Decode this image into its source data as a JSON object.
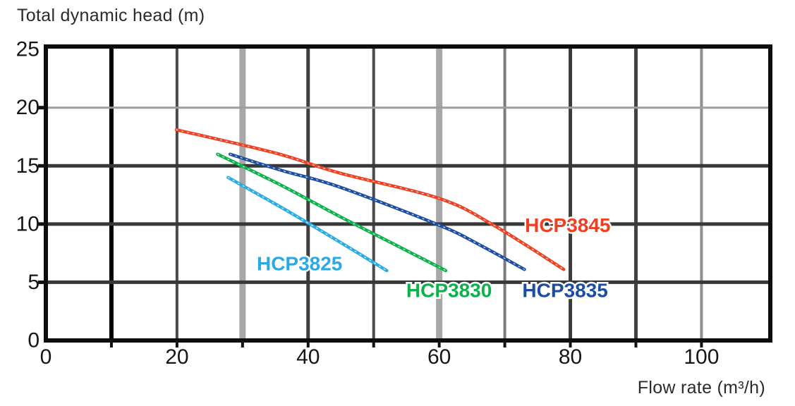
{
  "chart_data": {
    "type": "line",
    "title": "",
    "ylabel": "Total dynamic head (m)",
    "xlabel": "Flow rate (m³/h)",
    "xlim": [
      0,
      110.5
    ],
    "ylim": [
      0,
      25.25
    ],
    "grid": true,
    "x_gridline_step": 10,
    "y_gridline_step": 5,
    "legend_position": "inline-curve-labels",
    "x_ticks": [
      {
        "value": 0,
        "label": "0"
      },
      {
        "value": 20,
        "label": "20"
      },
      {
        "value": 40,
        "label": "40"
      },
      {
        "value": 60,
        "label": "60"
      },
      {
        "value": 80,
        "label": "80"
      },
      {
        "value": 100,
        "label": "100"
      }
    ],
    "y_ticks": [
      {
        "value": 0,
        "label": "0"
      },
      {
        "value": 5,
        "label": "5"
      },
      {
        "value": 10,
        "label": "10"
      },
      {
        "value": 15,
        "label": "15"
      },
      {
        "value": 20,
        "label": "20"
      },
      {
        "value": 25,
        "label": "25"
      }
    ],
    "series": [
      {
        "name": "HCP3825",
        "color": "#29abe2",
        "label_at": [
          38.7,
          6.6
        ],
        "points": [
          [
            27.8,
            14.0
          ],
          [
            36,
            11.4
          ],
          [
            44.7,
            8.5
          ],
          [
            52,
            6.0
          ]
        ]
      },
      {
        "name": "HCP3830",
        "color": "#0db14b",
        "label_at": [
          61.5,
          4.3
        ],
        "points": [
          [
            26.2,
            16.0
          ],
          [
            36,
            13.3
          ],
          [
            45,
            10.6
          ],
          [
            53,
            8.3
          ],
          [
            61,
            6.0
          ]
        ]
      },
      {
        "name": "HCP3835",
        "color": "#1c4da0",
        "label_at": [
          79.2,
          4.3
        ],
        "points": [
          [
            28.1,
            16.0
          ],
          [
            36,
            14.6
          ],
          [
            44.7,
            13.2
          ],
          [
            60,
            9.9
          ],
          [
            66.2,
            8.2
          ],
          [
            73,
            6.1
          ]
        ]
      },
      {
        "name": "HCP3845",
        "color": "#ee4123",
        "label_at": [
          79.6,
          9.9
        ],
        "points": [
          [
            19.9,
            18.1
          ],
          [
            35,
            16.1
          ],
          [
            44.7,
            14.4
          ],
          [
            60,
            12.2
          ],
          [
            68.3,
            9.9
          ],
          [
            79,
            6.1
          ]
        ]
      }
    ],
    "colors": {
      "axis_frame": "#0d0d0d",
      "grid_dark": "#3c3c3c",
      "grid_light": "#a8a8a8",
      "tick_text": "#161616",
      "title_text": "#2b2b2b"
    }
  }
}
